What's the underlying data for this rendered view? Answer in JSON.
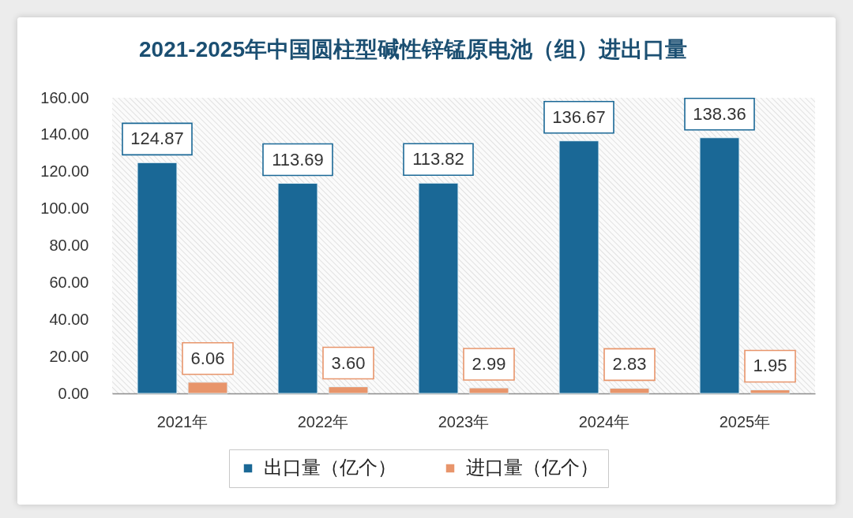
{
  "chart_data": {
    "type": "bar",
    "title": "2021-2025年中国圆柱型碱性锌锰原电池（组）进出口量",
    "categories": [
      "2021年",
      "2022年",
      "2023年",
      "2024年",
      "2025年"
    ],
    "series": [
      {
        "name": "出口量（亿个）",
        "color": "#1a6896",
        "values": [
          124.87,
          113.69,
          113.82,
          136.67,
          138.36
        ],
        "value_labels": [
          "124.87",
          "113.69",
          "113.82",
          "136.67",
          "138.36"
        ]
      },
      {
        "name": "进口量（亿个）",
        "color": "#e8956b",
        "values": [
          6.06,
          3.6,
          2.99,
          2.83,
          1.95
        ],
        "value_labels": [
          "6.06",
          "3.60",
          "2.99",
          "2.83",
          "1.95"
        ]
      }
    ],
    "ylim": [
      0,
      160
    ],
    "yticks": [
      {
        "value": 0,
        "label": "0.00"
      },
      {
        "value": 20,
        "label": "20.00"
      },
      {
        "value": 40,
        "label": "40.00"
      },
      {
        "value": 60,
        "label": "60.00"
      },
      {
        "value": 80,
        "label": "80.00"
      },
      {
        "value": 100,
        "label": "100.00"
      },
      {
        "value": 120,
        "label": "120.00"
      },
      {
        "value": 140,
        "label": "140.00"
      },
      {
        "value": 160,
        "label": "160.00"
      }
    ],
    "grid": false,
    "legend": "bottom"
  }
}
